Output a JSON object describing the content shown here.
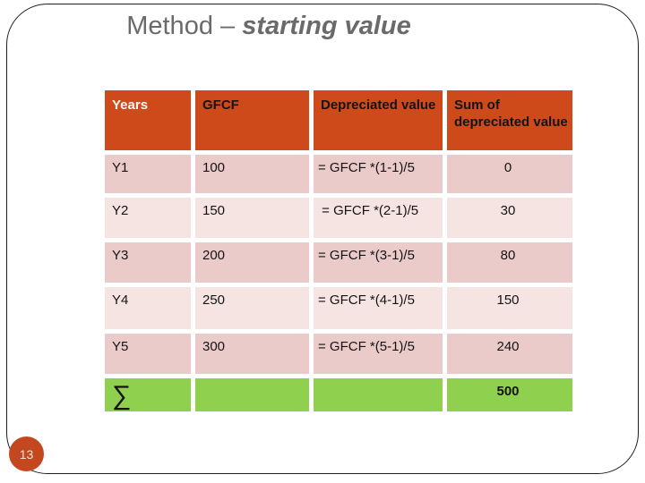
{
  "title": {
    "prefix": "Method – ",
    "emphasis": "starting value"
  },
  "page_number": "13",
  "table": {
    "headers": [
      "Years",
      "GFCF",
      "Depreciated value",
      "Sum of depreciated value"
    ],
    "rows": [
      {
        "year": "Y1",
        "gfcf": "100",
        "formula": "= GFCF *(1-1)/5",
        "sum": "0"
      },
      {
        "year": "Y2",
        "gfcf": "150",
        "formula": " = GFCF *(2-1)/5",
        "sum": "30"
      },
      {
        "year": "Y3",
        "gfcf": "200",
        "formula": "= GFCF *(3-1)/5",
        "sum": "80"
      },
      {
        "year": "Y4",
        "gfcf": "250",
        "formula": "= GFCF *(4-1)/5",
        "sum": "150"
      },
      {
        "year": "Y5",
        "gfcf": "300",
        "formula": "= GFCF *(5-1)/5",
        "sum": "240"
      }
    ],
    "total_row": {
      "symbol": "∑",
      "total": "500"
    }
  },
  "colors": {
    "header_bg": "#cf4a1b",
    "row_dark": "#eacbc9",
    "row_light": "#f6e4e2",
    "total_bg": "#8fd04f",
    "badge_bg": "#c4481f",
    "title_text": "#6a6a6a",
    "header_first_text": "#fcf7f1",
    "cell_text": "#141414"
  }
}
